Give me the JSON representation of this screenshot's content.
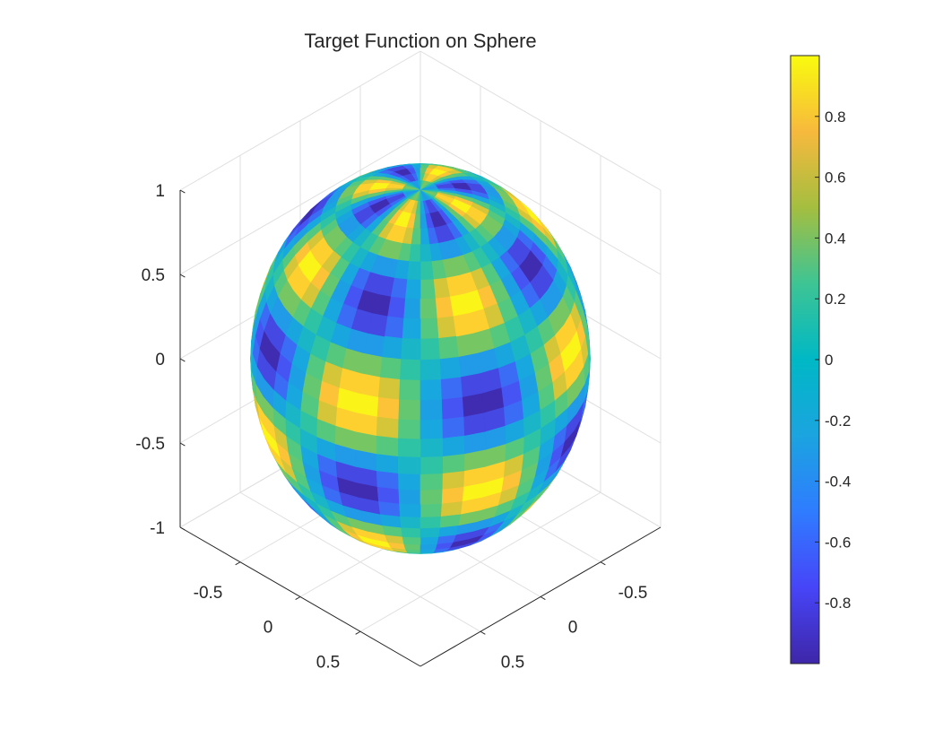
{
  "chart_data": {
    "type": "surface3d",
    "title": "Target Function on Sphere",
    "surface": "sphere",
    "function": "sin(4*phi)*sin(6*theta)",
    "theta_segments": 30,
    "phi_segments": 48,
    "view": "isometric (az -45, el 35.26)",
    "axes": {
      "x": {
        "label": "",
        "ticks": [
          -0.5,
          0,
          0.5
        ],
        "lim": [
          -1,
          1
        ]
      },
      "y": {
        "label": "",
        "ticks": [
          -0.5,
          0,
          0.5
        ],
        "lim": [
          -1,
          1
        ]
      },
      "z": {
        "label": "",
        "ticks": [
          -1,
          -0.5,
          0,
          0.5,
          1
        ],
        "lim": [
          -1,
          1
        ]
      }
    },
    "grid": true,
    "box": false,
    "colormap": "parula",
    "colorbar": {
      "location": "right",
      "range": [
        -1,
        1
      ],
      "ticks": [
        -0.8,
        -0.6,
        -0.4,
        -0.2,
        0,
        0.2,
        0.4,
        0.6,
        0.8
      ]
    }
  }
}
